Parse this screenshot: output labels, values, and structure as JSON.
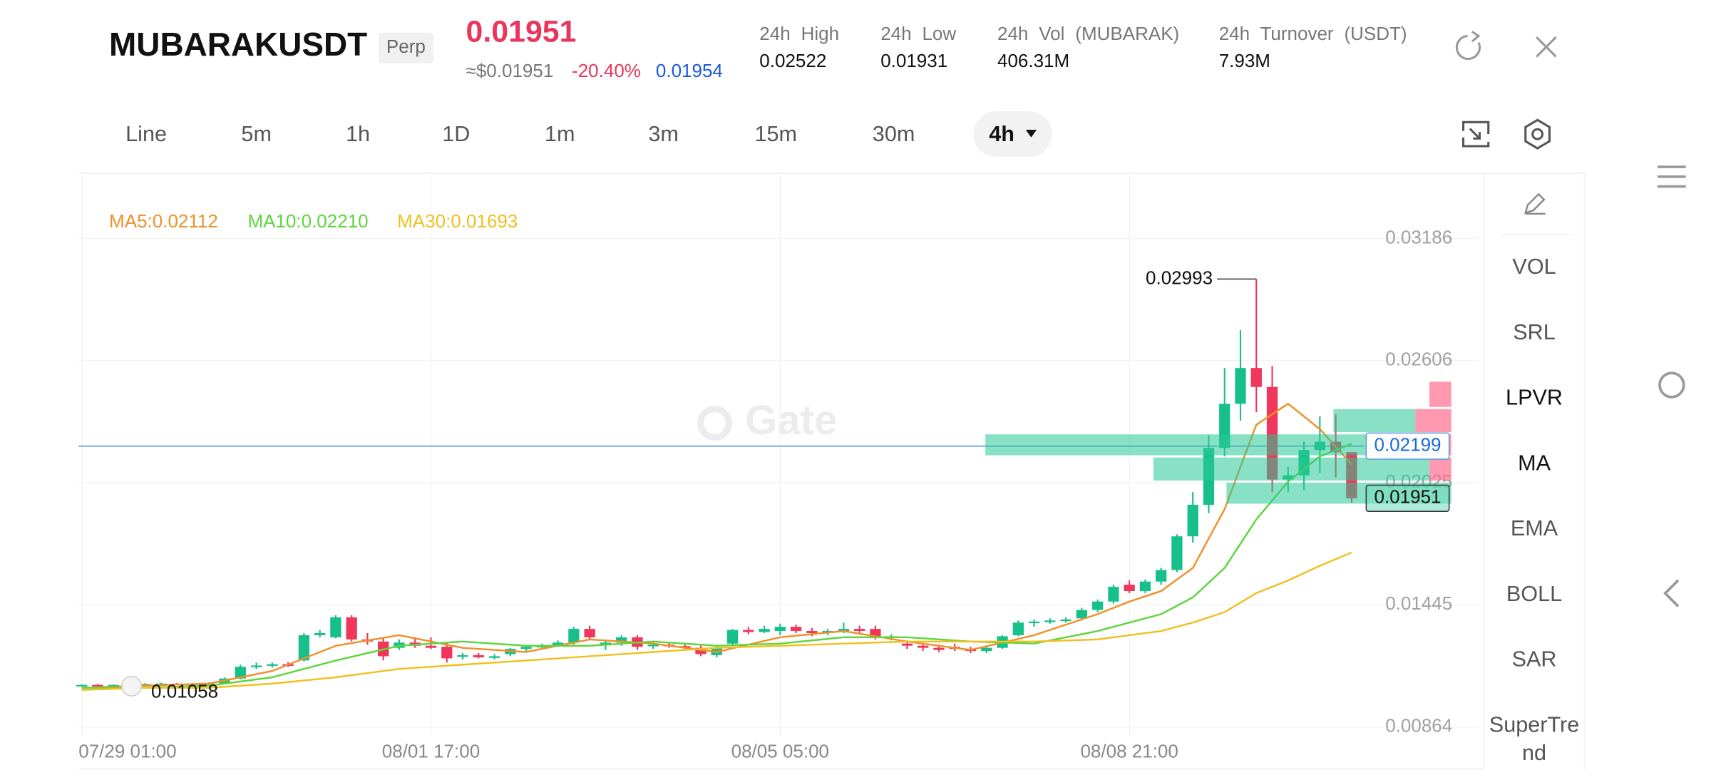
{
  "header": {
    "symbol": "MUBARAKUSDT",
    "contract": "Perp",
    "last_price": "0.01951",
    "usd_price": "≈$0.01951",
    "change": "-20.40%",
    "mark_price": "0.01954",
    "stats": [
      {
        "label": "24h High",
        "value": "0.02522"
      },
      {
        "label": "24h Low",
        "value": "0.01931"
      },
      {
        "label": "24h Vol (MUBARAK)",
        "value": "406.31M"
      },
      {
        "label": "24h Turnover (USDT)",
        "value": "7.93M"
      }
    ]
  },
  "timeframes": [
    "Line",
    "5m",
    "1h",
    "1D",
    "1m",
    "3m",
    "15m",
    "30m",
    "4h"
  ],
  "active_timeframe": 8,
  "indicators": [
    "VOL",
    "SRL",
    "LPVR",
    "MA",
    "EMA",
    "BOLL",
    "SAR",
    "SuperTrend"
  ],
  "active_indicators": [
    2,
    3
  ],
  "chart": {
    "type": "candlestick",
    "watermark": "Gate",
    "up_color": "#17c08a",
    "down_color": "#f0365a",
    "ylim": [
      0.0082,
      0.0349
    ],
    "yticks": [
      0.03186,
      0.02606,
      0.02025,
      0.01445,
      0.00864
    ],
    "xlim": [
      -0.2,
      88
    ],
    "xticks": [
      {
        "value": 0,
        "label": "07/29 01:00"
      },
      {
        "value": 22,
        "label": "08/01 17:00"
      },
      {
        "value": 44,
        "label": "08/05 05:00"
      },
      {
        "value": 66,
        "label": "08/08 21:00"
      }
    ],
    "grid": true,
    "candles": [
      [
        0.01062,
        0.01066,
        0.0106,
        0.01064
      ],
      [
        0.01064,
        0.01068,
        0.0106,
        0.01062
      ],
      [
        0.01062,
        0.01066,
        0.0106,
        0.01064
      ],
      [
        0.01064,
        0.0107,
        0.01058,
        0.01066
      ],
      [
        0.01066,
        0.01072,
        0.01062,
        0.01068
      ],
      [
        0.01068,
        0.01074,
        0.01062,
        0.0107
      ],
      [
        0.0107,
        0.01072,
        0.01062,
        0.01066
      ],
      [
        0.01066,
        0.01072,
        0.01062,
        0.01068
      ],
      [
        0.01068,
        0.01076,
        0.01064,
        0.01072
      ],
      [
        0.0107,
        0.011,
        0.01066,
        0.01094
      ],
      [
        0.01094,
        0.0116,
        0.0109,
        0.0115
      ],
      [
        0.0115,
        0.0117,
        0.0114,
        0.01156
      ],
      [
        0.01156,
        0.0117,
        0.01146,
        0.01162
      ],
      [
        0.01162,
        0.01172,
        0.0115,
        0.01158
      ],
      [
        0.0118,
        0.0131,
        0.01175,
        0.013
      ],
      [
        0.013,
        0.01325,
        0.0129,
        0.0131
      ],
      [
        0.0129,
        0.01395,
        0.01285,
        0.01385
      ],
      [
        0.01385,
        0.01395,
        0.0127,
        0.0128
      ],
      [
        0.0128,
        0.0131,
        0.01255,
        0.0127
      ],
      [
        0.0127,
        0.01285,
        0.0118,
        0.012
      ],
      [
        0.0124,
        0.0128,
        0.0123,
        0.01265
      ],
      [
        0.01265,
        0.0129,
        0.0124,
        0.0125
      ],
      [
        0.0125,
        0.0129,
        0.01235,
        0.0124
      ],
      [
        0.01245,
        0.01265,
        0.0117,
        0.0119
      ],
      [
        0.012,
        0.01215,
        0.01185,
        0.01205
      ],
      [
        0.01205,
        0.01215,
        0.0119,
        0.01195
      ],
      [
        0.01195,
        0.0121,
        0.01185,
        0.012
      ],
      [
        0.0121,
        0.0124,
        0.012,
        0.01235
      ],
      [
        0.01235,
        0.0125,
        0.01225,
        0.01245
      ],
      [
        0.01245,
        0.0126,
        0.0124,
        0.0125
      ],
      [
        0.0125,
        0.01275,
        0.01245,
        0.01265
      ],
      [
        0.01265,
        0.0134,
        0.01255,
        0.0133
      ],
      [
        0.0133,
        0.01345,
        0.0128,
        0.0129
      ],
      [
        0.0126,
        0.01275,
        0.0123,
        0.01265
      ],
      [
        0.01265,
        0.013,
        0.0125,
        0.0129
      ],
      [
        0.0129,
        0.013,
        0.0123,
        0.01245
      ],
      [
        0.0125,
        0.01265,
        0.01235,
        0.01255
      ],
      [
        0.01255,
        0.01265,
        0.0124,
        0.01248
      ],
      [
        0.01248,
        0.0126,
        0.01235,
        0.0124
      ],
      [
        0.0124,
        0.0125,
        0.012,
        0.0121
      ],
      [
        0.01205,
        0.0125,
        0.01195,
        0.0124
      ],
      [
        0.0126,
        0.0133,
        0.01255,
        0.01325
      ],
      [
        0.01325,
        0.0134,
        0.01305,
        0.01315
      ],
      [
        0.01315,
        0.01345,
        0.0131,
        0.0133
      ],
      [
        0.0132,
        0.01355,
        0.013,
        0.0134
      ],
      [
        0.0134,
        0.0135,
        0.0131,
        0.0132
      ],
      [
        0.0132,
        0.01335,
        0.01295,
        0.0131
      ],
      [
        0.0131,
        0.0133,
        0.013,
        0.0132
      ],
      [
        0.0132,
        0.0136,
        0.0131,
        0.0133
      ],
      [
        0.0133,
        0.01345,
        0.01305,
        0.0132
      ],
      [
        0.0133,
        0.01345,
        0.0128,
        0.0129
      ],
      [
        0.0129,
        0.01305,
        0.01275,
        0.01295
      ],
      [
        0.0126,
        0.01275,
        0.01235,
        0.0125
      ],
      [
        0.0125,
        0.0126,
        0.01225,
        0.0124
      ],
      [
        0.0124,
        0.01255,
        0.0122,
        0.0123
      ],
      [
        0.01245,
        0.0126,
        0.01225,
        0.01235
      ],
      [
        0.01235,
        0.01245,
        0.01215,
        0.01225
      ],
      [
        0.01225,
        0.0125,
        0.01215,
        0.0124
      ],
      [
        0.0124,
        0.013,
        0.01235,
        0.01295
      ],
      [
        0.013,
        0.0137,
        0.01295,
        0.0136
      ],
      [
        0.0136,
        0.01375,
        0.0134,
        0.01365
      ],
      [
        0.01365,
        0.0138,
        0.01355,
        0.0137
      ],
      [
        0.0137,
        0.01385,
        0.0136,
        0.01375
      ],
      [
        0.0138,
        0.0143,
        0.0137,
        0.0142
      ],
      [
        0.0142,
        0.0147,
        0.0141,
        0.0146
      ],
      [
        0.0146,
        0.0154,
        0.0145,
        0.0153
      ],
      [
        0.0154,
        0.0156,
        0.015,
        0.0151
      ],
      [
        0.0151,
        0.01565,
        0.015,
        0.01555
      ],
      [
        0.01555,
        0.0162,
        0.0154,
        0.0161
      ],
      [
        0.0161,
        0.0178,
        0.016,
        0.0177
      ],
      [
        0.0177,
        0.0198,
        0.0174,
        0.0192
      ],
      [
        0.0192,
        0.0225,
        0.0188,
        0.0219
      ],
      [
        0.0219,
        0.0257,
        0.0215,
        0.024
      ],
      [
        0.024,
        0.0275,
        0.0232,
        0.0257
      ],
      [
        0.0257,
        0.02993,
        0.0236,
        0.0248
      ],
      [
        0.0248,
        0.0258,
        0.0198,
        0.0204
      ],
      [
        0.0204,
        0.021,
        0.0198,
        0.0206
      ],
      [
        0.0206,
        0.0222,
        0.0199,
        0.0218
      ],
      [
        0.0218,
        0.0234,
        0.0207,
        0.0222
      ],
      [
        0.0222,
        0.0235,
        0.0205,
        0.0217
      ],
      [
        0.0217,
        0.0217,
        0.0193,
        0.01951
      ]
    ],
    "high_candle": 74,
    "low_candle": 3,
    "ma_x": [
      0,
      4,
      8,
      12,
      16,
      20,
      24,
      28,
      32,
      36,
      40,
      44,
      48,
      52,
      56,
      60,
      64,
      66,
      68,
      70,
      72,
      74,
      76,
      78,
      80
    ],
    "ma": [
      {
        "name": "MA5",
        "label": "MA5:0.02112",
        "color": "#f0902a",
        "values": [
          0.0105,
          0.0106,
          0.0107,
          0.0113,
          0.0125,
          0.013,
          0.0124,
          0.0122,
          0.0128,
          0.0126,
          0.0122,
          0.0129,
          0.0132,
          0.0127,
          0.0123,
          0.013,
          0.014,
          0.0146,
          0.0151,
          0.0162,
          0.019,
          0.023,
          0.024,
          0.0228,
          0.02112
        ]
      },
      {
        "name": "MA10",
        "label": "MA10:0.02210",
        "color": "#5ed53d",
        "values": [
          0.0105,
          0.0105,
          0.0106,
          0.011,
          0.0118,
          0.0125,
          0.0127,
          0.0125,
          0.0125,
          0.0127,
          0.0125,
          0.0126,
          0.0129,
          0.0129,
          0.0127,
          0.0126,
          0.0132,
          0.0136,
          0.014,
          0.0148,
          0.0162,
          0.0185,
          0.0203,
          0.0215,
          0.0221
        ]
      },
      {
        "name": "MA30",
        "label": "MA30:0.01693",
        "color": "#f0c020",
        "values": [
          0.0104,
          0.0105,
          0.0105,
          0.0107,
          0.011,
          0.0114,
          0.0116,
          0.0118,
          0.012,
          0.0122,
          0.0124,
          0.0125,
          0.0126,
          0.0127,
          0.0127,
          0.0127,
          0.0128,
          0.013,
          0.0132,
          0.0136,
          0.0141,
          0.015,
          0.0156,
          0.0163,
          0.01693
        ]
      }
    ],
    "price_line": 0.02199,
    "lpvr": {
      "bins": [
        0.0192,
        0.0203,
        0.0215,
        0.0226,
        0.0238,
        0.0251
      ],
      "buy": [
        206,
        253,
        400,
        75,
        0
      ],
      "sell": [
        0,
        20,
        27,
        33,
        20
      ]
    }
  }
}
